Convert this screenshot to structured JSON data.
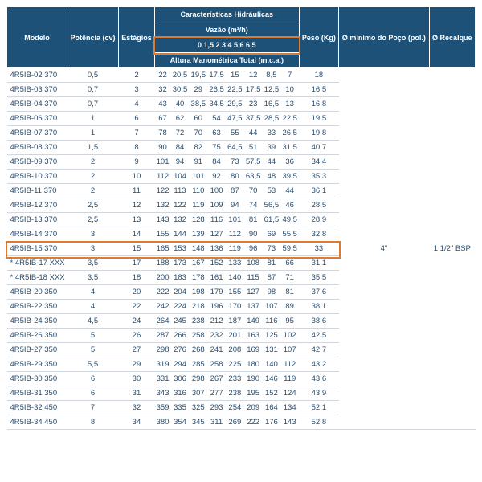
{
  "headers": {
    "modelo": "Modelo",
    "potencia": "Potência (cv)",
    "estagios": "Estágios",
    "caract": "Características Hidráulicas",
    "vazao": "Vazão (m³/h)",
    "flow_vals": "0 1,5 2 3 4 5 6 6,5",
    "altura": "Altura Manométrica Total (m.c.a.)",
    "peso": "Peso (Kg)",
    "minimo": "Ø mínimo do Poço (pol.)",
    "recalque": "Ø Recalque"
  },
  "poco": "4\"",
  "recalque": "1 1/2\" BSP",
  "rows": [
    {
      "m": "4R5IB-02 370",
      "p": "0,5",
      "e": "2",
      "v": [
        "22",
        "20,5",
        "19,5",
        "17,5",
        "15",
        "12",
        "8,5",
        "7"
      ],
      "k": "18"
    },
    {
      "m": "4R5IB-03 370",
      "p": "0,7",
      "e": "3",
      "v": [
        "32",
        "30,5",
        "29",
        "26,5",
        "22,5",
        "17,5",
        "12,5",
        "10"
      ],
      "k": "16,5"
    },
    {
      "m": "4R5IB-04 370",
      "p": "0,7",
      "e": "4",
      "v": [
        "43",
        "40",
        "38,5",
        "34,5",
        "29,5",
        "23",
        "16,5",
        "13"
      ],
      "k": "16,8"
    },
    {
      "m": "4R5IB-06 370",
      "p": "1",
      "e": "6",
      "v": [
        "67",
        "62",
        "60",
        "54",
        "47,5",
        "37,5",
        "28,5",
        "22,5"
      ],
      "k": "19,5"
    },
    {
      "m": "4R5IB-07 370",
      "p": "1",
      "e": "7",
      "v": [
        "78",
        "72",
        "70",
        "63",
        "55",
        "44",
        "33",
        "26,5"
      ],
      "k": "19,8"
    },
    {
      "m": "4R5IB-08 370",
      "p": "1,5",
      "e": "8",
      "v": [
        "90",
        "84",
        "82",
        "75",
        "64,5",
        "51",
        "39",
        "31,5"
      ],
      "k": "40,7"
    },
    {
      "m": "4R5IB-09 370",
      "p": "2",
      "e": "9",
      "v": [
        "101",
        "94",
        "91",
        "84",
        "73",
        "57,5",
        "44",
        "36"
      ],
      "k": "34,4"
    },
    {
      "m": "4R5IB-10 370",
      "p": "2",
      "e": "10",
      "v": [
        "112",
        "104",
        "101",
        "92",
        "80",
        "63,5",
        "48",
        "39,5"
      ],
      "k": "35,3"
    },
    {
      "m": "4R5IB-11 370",
      "p": "2",
      "e": "11",
      "v": [
        "122",
        "113",
        "110",
        "100",
        "87",
        "70",
        "53",
        "44"
      ],
      "k": "36,1"
    },
    {
      "m": "4R5IB-12 370",
      "p": "2,5",
      "e": "12",
      "v": [
        "132",
        "122",
        "119",
        "109",
        "94",
        "74",
        "56,5",
        "46"
      ],
      "k": "28,5"
    },
    {
      "m": "4R5IB-13 370",
      "p": "2,5",
      "e": "13",
      "v": [
        "143",
        "132",
        "128",
        "116",
        "101",
        "81",
        "61,5",
        "49,5"
      ],
      "k": "28,9"
    },
    {
      "m": "4R5IB-14 370",
      "p": "3",
      "e": "14",
      "v": [
        "155",
        "144",
        "139",
        "127",
        "112",
        "90",
        "69",
        "55,5"
      ],
      "k": "32,8"
    },
    {
      "m": "4R5IB-15 370",
      "p": "3",
      "e": "15",
      "v": [
        "165",
        "153",
        "148",
        "136",
        "119",
        "96",
        "73",
        "59,5"
      ],
      "k": "33",
      "hl": true
    },
    {
      "m": "* 4R5IB-17 XXX",
      "p": "3,5",
      "e": "17",
      "v": [
        "188",
        "173",
        "167",
        "152",
        "133",
        "108",
        "81",
        "66"
      ],
      "k": "31,1"
    },
    {
      "m": "* 4R5IB-18 XXX",
      "p": "3,5",
      "e": "18",
      "v": [
        "200",
        "183",
        "178",
        "161",
        "140",
        "115",
        "87",
        "71"
      ],
      "k": "35,5"
    },
    {
      "m": "4R5IB-20 350",
      "p": "4",
      "e": "20",
      "v": [
        "222",
        "204",
        "198",
        "179",
        "155",
        "127",
        "98",
        "81"
      ],
      "k": "37,6"
    },
    {
      "m": "4R5IB-22 350",
      "p": "4",
      "e": "22",
      "v": [
        "242",
        "224",
        "218",
        "196",
        "170",
        "137",
        "107",
        "89"
      ],
      "k": "38,1"
    },
    {
      "m": "4R5IB-24 350",
      "p": "4,5",
      "e": "24",
      "v": [
        "264",
        "245",
        "238",
        "212",
        "187",
        "149",
        "116",
        "95"
      ],
      "k": "38,6"
    },
    {
      "m": "4R5IB-26 350",
      "p": "5",
      "e": "26",
      "v": [
        "287",
        "266",
        "258",
        "232",
        "201",
        "163",
        "125",
        "102"
      ],
      "k": "42,5"
    },
    {
      "m": "4R5IB-27 350",
      "p": "5",
      "e": "27",
      "v": [
        "298",
        "276",
        "268",
        "241",
        "208",
        "169",
        "131",
        "107"
      ],
      "k": "42,7"
    },
    {
      "m": "4R5IB-29 350",
      "p": "5,5",
      "e": "29",
      "v": [
        "319",
        "294",
        "285",
        "258",
        "225",
        "180",
        "140",
        "112"
      ],
      "k": "43,2"
    },
    {
      "m": "4R5IB-30 350",
      "p": "6",
      "e": "30",
      "v": [
        "331",
        "306",
        "298",
        "267",
        "233",
        "190",
        "146",
        "119"
      ],
      "k": "43,6"
    },
    {
      "m": "4R5IB-31 350",
      "p": "6",
      "e": "31",
      "v": [
        "343",
        "316",
        "307",
        "277",
        "238",
        "195",
        "152",
        "124"
      ],
      "k": "43,9"
    },
    {
      "m": "4R5IB-32 450",
      "p": "7",
      "e": "32",
      "v": [
        "359",
        "335",
        "325",
        "293",
        "254",
        "209",
        "164",
        "134"
      ],
      "k": "52,1"
    },
    {
      "m": "4R5IB-34 450",
      "p": "8",
      "e": "34",
      "v": [
        "380",
        "354",
        "345",
        "311",
        "269",
        "222",
        "176",
        "143"
      ],
      "k": "52,8"
    }
  ]
}
